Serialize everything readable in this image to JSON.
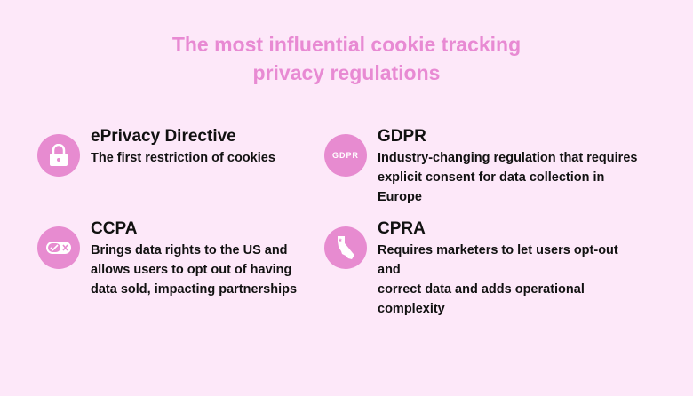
{
  "title": {
    "line1": "The most influential cookie tracking",
    "line2": "privacy regulations"
  },
  "colors": {
    "accent": "#e78bd0",
    "background": "#fde8f9",
    "title": "#e88ad3"
  },
  "items": [
    {
      "icon": "lock-icon",
      "heading": "ePrivacy Directive",
      "lines": [
        "The first restriction of cookies"
      ]
    },
    {
      "icon": "gdpr-icon",
      "icon_text": "GDPR",
      "heading": "GDPR",
      "lines": [
        "Industry-changing regulation that requires",
        "explicit consent for data collection in Europe"
      ]
    },
    {
      "icon": "toggle-check-x-icon",
      "heading": "CCPA",
      "lines": [
        "Brings data rights to the US and",
        "allows users to opt out of having",
        "data sold, impacting partnerships"
      ]
    },
    {
      "icon": "california-map-icon",
      "heading": "CPRA",
      "lines": [
        "Requires marketers to let users opt-out and",
        "correct data and adds operational complexity"
      ]
    }
  ]
}
